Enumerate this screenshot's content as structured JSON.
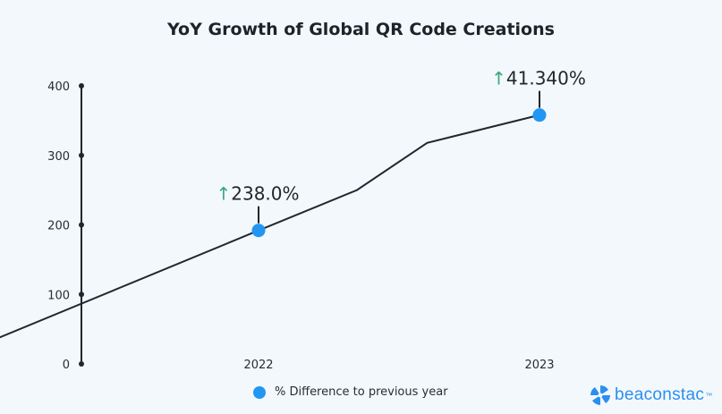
{
  "chart_data": {
    "type": "line",
    "title": "YoY Growth of Global QR Code Creations",
    "ylim": [
      0,
      400
    ],
    "yticks": [
      "0",
      "100",
      "200",
      "300",
      "400"
    ],
    "x_tick_labels": [
      "2022",
      "2023"
    ],
    "points": [
      {
        "x": 2021.0,
        "y": 25
      },
      {
        "x": 2022.0,
        "y": 192
      },
      {
        "x": 2022.35,
        "y": 250
      },
      {
        "x": 2022.6,
        "y": 318
      },
      {
        "x": 2023.0,
        "y": 358
      }
    ],
    "highlighted": [
      {
        "x": 2022.0,
        "y": 192,
        "label": "238.0%"
      },
      {
        "x": 2023.0,
        "y": 358,
        "label": "41.340%"
      }
    ],
    "line_color": "#23262d",
    "marker_color": "#2196f3",
    "arrow_color": "#3aa67a",
    "arrow_icon": "arrow-up-icon",
    "grid": false,
    "legend": {
      "placement": "bottom",
      "entries": [
        "% Difference to previous year"
      ]
    }
  },
  "brand": {
    "name": "beaconstac",
    "tm": "™",
    "color": "#2b8ff0"
  }
}
